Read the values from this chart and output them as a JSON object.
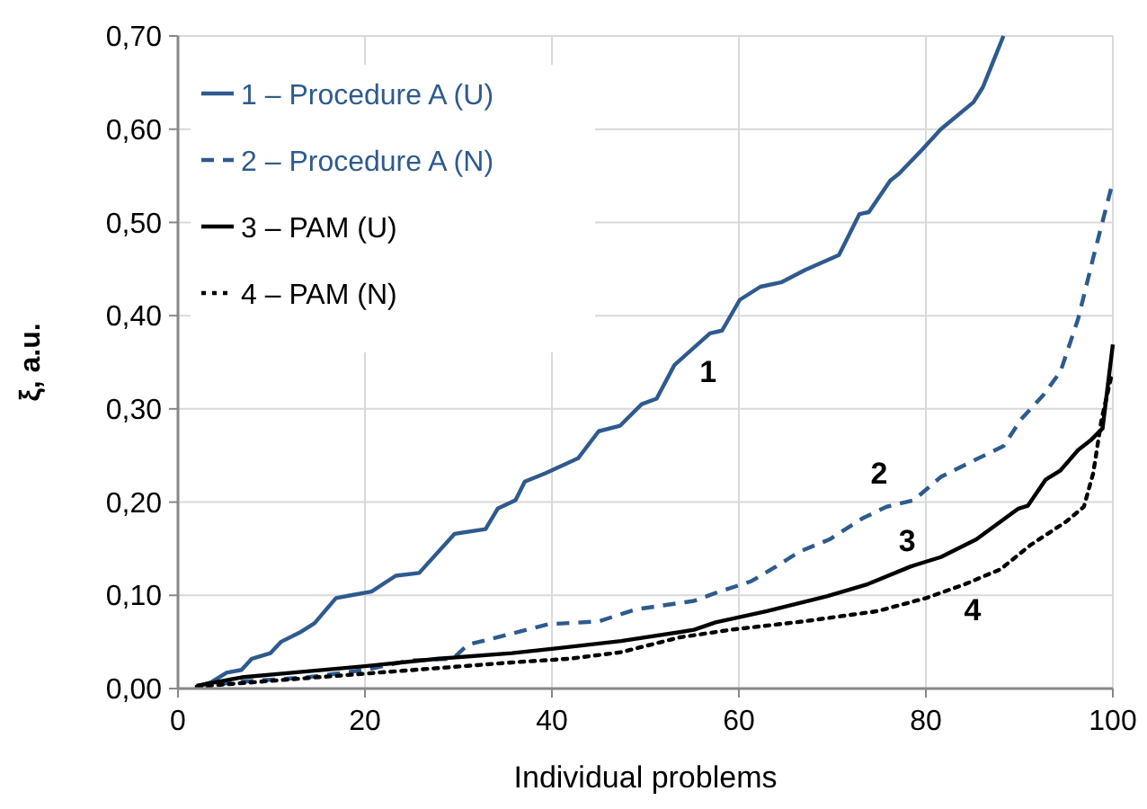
{
  "chart_data": {
    "type": "line",
    "xlabel": "Individual problems",
    "ylabel": "ξ, a.u.",
    "xlim": [
      0,
      100
    ],
    "xticks": [
      0,
      20,
      40,
      60,
      80,
      100
    ],
    "ylim": [
      0,
      0.7
    ],
    "yticks": [
      {
        "value": 0,
        "label": "0,00"
      },
      {
        "value": 0.1,
        "label": "0,10"
      },
      {
        "value": 0.2,
        "label": "0,20"
      },
      {
        "value": 0.3,
        "label": "0,30"
      },
      {
        "value": 0.4,
        "label": "0,40"
      },
      {
        "value": 0.5,
        "label": "0,50"
      },
      {
        "value": 0.6,
        "label": "0,60"
      },
      {
        "value": 0.7,
        "label": "0,70"
      }
    ],
    "grid": true,
    "legend": "top left",
    "marker": "none",
    "series": [
      {
        "name": "1 – Procedure A (U)",
        "color": "#2e5a8e",
        "line_style": "solid",
        "x": [
          2,
          3.6,
          5.2,
          6.8,
          7.9,
          9.9,
          11,
          13,
          14.6,
          16.9,
          18.5,
          20.7,
          23.3,
          25.8,
          29.6,
          32.9,
          34.2,
          36.1,
          37.1,
          39.3,
          42.8,
          45,
          47.3,
          49.6,
          51.2,
          53.1,
          56.9,
          58.2,
          60.1,
          62.3,
          64.6,
          67.1,
          70.7,
          72.9,
          73.9,
          76.2,
          77.1,
          79.6,
          81.6,
          85.1,
          86.1,
          87.1,
          88.3
        ],
        "values": [
          0.002,
          0.007,
          0.017,
          0.02,
          0.032,
          0.038,
          0.05,
          0.06,
          0.07,
          0.097,
          0.1,
          0.104,
          0.121,
          0.124,
          0.166,
          0.171,
          0.193,
          0.202,
          0.222,
          0.231,
          0.247,
          0.276,
          0.282,
          0.305,
          0.311,
          0.347,
          0.381,
          0.384,
          0.417,
          0.431,
          0.436,
          0.449,
          0.465,
          0.509,
          0.511,
          0.545,
          0.552,
          0.578,
          0.6,
          0.629,
          0.645,
          0.67,
          0.7
        ]
      },
      {
        "name": "2 – Procedure A (N)",
        "color": "#2e5a8e",
        "line_style": "dashed",
        "x": [
          4.4,
          7.6,
          13.8,
          20,
          24.7,
          29.4,
          31,
          35.7,
          39.6,
          45,
          49,
          55.2,
          57.9,
          61.3,
          64,
          66.5,
          69.7,
          73.3,
          75.8,
          78.7,
          81.6,
          84.8,
          88.3,
          90.2,
          92.5,
          94.4,
          96.3,
          97.9,
          99.8
        ],
        "values": [
          0.005,
          0.008,
          0.012,
          0.02,
          0.03,
          0.032,
          0.047,
          0.059,
          0.069,
          0.072,
          0.085,
          0.094,
          0.104,
          0.115,
          0.131,
          0.147,
          0.16,
          0.183,
          0.195,
          0.202,
          0.227,
          0.243,
          0.26,
          0.289,
          0.314,
          0.34,
          0.397,
          0.462,
          0.536
        ]
      },
      {
        "name": "3 – PAM (U)",
        "color": "#000000",
        "line_style": "solid",
        "x": [
          2,
          6.8,
          12.2,
          20,
          27.9,
          35.7,
          40.4,
          47.4,
          55.2,
          57.5,
          63,
          69.4,
          73.8,
          78.4,
          81.6,
          85.4,
          89.9,
          90.9,
          92.8,
          94.4,
          96.3,
          97.6,
          98.9,
          100
        ],
        "values": [
          0.003,
          0.012,
          0.017,
          0.024,
          0.032,
          0.038,
          0.043,
          0.051,
          0.063,
          0.071,
          0.083,
          0.099,
          0.112,
          0.131,
          0.141,
          0.16,
          0.193,
          0.196,
          0.224,
          0.234,
          0.256,
          0.266,
          0.279,
          0.369
        ]
      },
      {
        "name": "4 – PAM (N)",
        "color": "#000000",
        "line_style": "dotted",
        "x": [
          2,
          12.2,
          20,
          27.9,
          35.7,
          41.9,
          47.4,
          53.7,
          59.1,
          66.9,
          74.8,
          80,
          84.2,
          88,
          91.2,
          95,
          96.9,
          97.9,
          98.8,
          99.8
        ],
        "values": [
          0.002,
          0.01,
          0.016,
          0.022,
          0.028,
          0.032,
          0.039,
          0.055,
          0.063,
          0.072,
          0.083,
          0.097,
          0.112,
          0.128,
          0.154,
          0.179,
          0.195,
          0.231,
          0.289,
          0.333
        ]
      }
    ],
    "annotations": [
      "1",
      "2",
      "3",
      "4"
    ]
  }
}
